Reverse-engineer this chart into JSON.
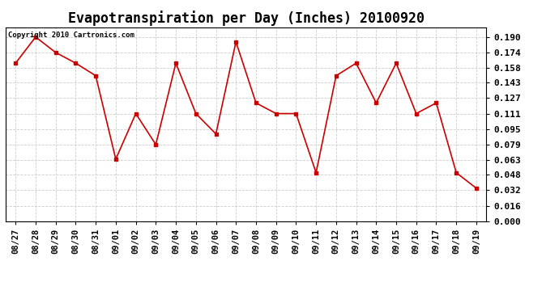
{
  "title": "Evapotranspiration per Day (Inches) 20100920",
  "copyright_text": "Copyright 2010 Cartronics.com",
  "x_labels": [
    "08/27",
    "08/28",
    "08/29",
    "08/30",
    "08/31",
    "09/01",
    "09/02",
    "09/03",
    "09/04",
    "09/05",
    "09/06",
    "09/07",
    "09/08",
    "09/09",
    "09/10",
    "09/11",
    "09/12",
    "09/13",
    "09/14",
    "09/15",
    "09/16",
    "09/17",
    "09/18",
    "09/19"
  ],
  "y_values": [
    0.163,
    0.19,
    0.174,
    0.163,
    0.15,
    0.064,
    0.111,
    0.079,
    0.163,
    0.111,
    0.09,
    0.185,
    0.122,
    0.111,
    0.111,
    0.05,
    0.15,
    0.163,
    0.122,
    0.163,
    0.111,
    0.122,
    0.05,
    0.034
  ],
  "line_color": "#cc0000",
  "marker": "s",
  "marker_size": 2.5,
  "y_ticks": [
    0.0,
    0.016,
    0.032,
    0.048,
    0.063,
    0.079,
    0.095,
    0.111,
    0.127,
    0.143,
    0.158,
    0.174,
    0.19
  ],
  "y_tick_labels": [
    "0.000",
    "0.016",
    "0.032",
    "0.048",
    "0.063",
    "0.079",
    "0.095",
    "0.111",
    "0.127",
    "0.143",
    "0.158",
    "0.174",
    "0.190"
  ],
  "ylim": [
    0.0,
    0.2
  ],
  "bg_color": "#ffffff",
  "grid_color": "#cccccc",
  "title_fontsize": 12,
  "copyright_fontsize": 6.5,
  "tick_fontsize": 7.5,
  "y_tick_fontsize": 8
}
